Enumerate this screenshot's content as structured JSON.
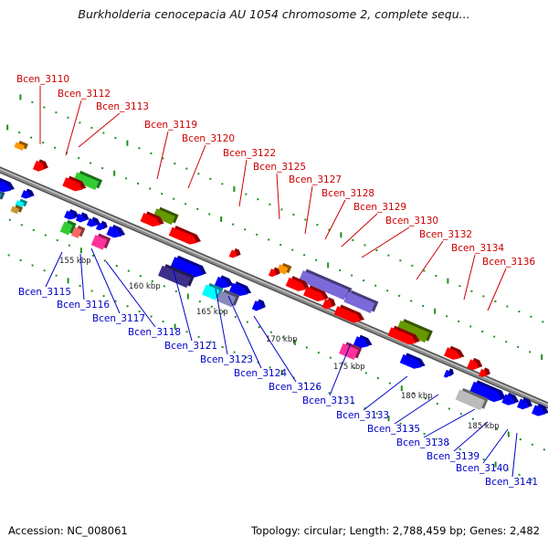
{
  "title": "Burkholderia cenocepacia AU 1054 chromosome 2, complete sequ...",
  "footer": {
    "accession": "Accession: NC_008061",
    "info": "Topology: circular; Length: 2,788,459 bp; Genes: 2,482"
  },
  "colors": {
    "backbone": "#8c8c8c",
    "dots": "#1f8f1f",
    "label_top": "#cc0000",
    "label_bottom": "#0000cc"
  },
  "ticks": [
    "155 kbp",
    "160 kbp",
    "165 kbp",
    "170 kbp",
    "175 kbp",
    "180 kbp",
    "185 kbp"
  ],
  "labels_top": [
    "Bcen_3110",
    "Bcen_3112",
    "Bcen_3113",
    "Bcen_3119",
    "Bcen_3120",
    "Bcen_3122",
    "Bcen_3125",
    "Bcen_3127",
    "Bcen_3128",
    "Bcen_3129",
    "Bcen_3130",
    "Bcen_3132",
    "Bcen_3134",
    "Bcen_3136"
  ],
  "labels_bottom": [
    "Bcen_3115",
    "Bcen_3116",
    "Bcen_3117",
    "Bcen_3118",
    "Bcen_3121",
    "Bcen_3123",
    "Bcen_3124",
    "Bcen_3126",
    "Bcen_3131",
    "Bcen_3133",
    "Bcen_3135",
    "Bcen_3138",
    "Bcen_3139",
    "Bcen_3140",
    "Bcen_3141"
  ]
}
